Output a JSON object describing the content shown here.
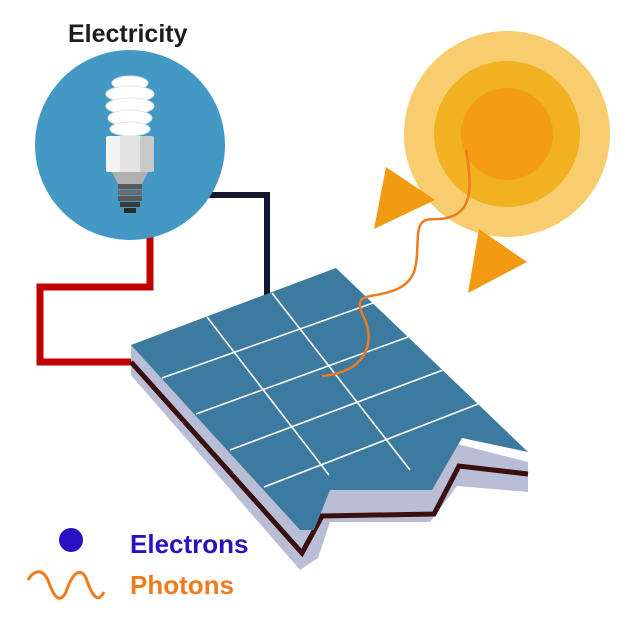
{
  "title": "Electricity",
  "legend": {
    "electrons": "Electrons",
    "photons": "Photons"
  },
  "colors": {
    "title": "#1d1d1d",
    "electrons": "#2b10c2",
    "photons": "#f07a1e",
    "bulb_circle": "#4499c4",
    "panel_face": "#3d7aa0",
    "panel_grid": "#ffffff",
    "panel_side": "#b9bdd6",
    "panel_dark_line": "#3a0f0f",
    "wire_positive": "#c00000",
    "wire_negative": "#14182e",
    "sun_outer": "#f7cd6f",
    "sun_middle": "#f1b121",
    "sun_inner": "#f39c14",
    "photon_arrow": "#f29a12"
  },
  "icons": {
    "bulb": "lightbulb-icon",
    "sun": "sun-icon",
    "panel": "solar-panel-icon",
    "electron": "electron-dot-icon",
    "photon": "photon-wave-icon"
  }
}
